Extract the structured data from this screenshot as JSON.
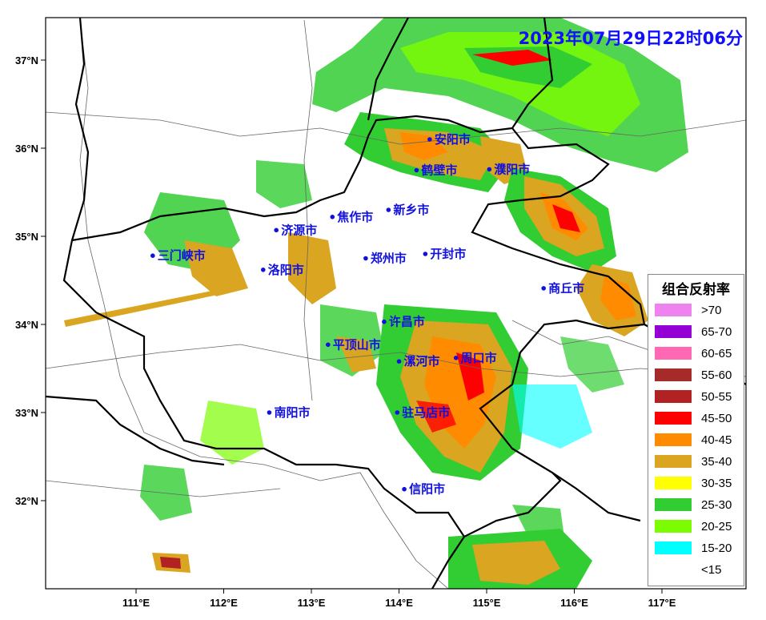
{
  "timestamp": "2023年07月29日22时06分",
  "axes": {
    "lon_labels": [
      "111°E",
      "112°E",
      "113°E",
      "114°E",
      "115°E",
      "116°E",
      "117°E"
    ],
    "lat_labels": [
      "37°N",
      "36°N",
      "35°N",
      "34°N",
      "33°N",
      "32°N"
    ]
  },
  "cities": [
    {
      "name": "安阳市",
      "lon": 114.35,
      "lat": 36.1
    },
    {
      "name": "鹤壁市",
      "lon": 114.2,
      "lat": 35.75
    },
    {
      "name": "濮阳市",
      "lon": 115.03,
      "lat": 35.76
    },
    {
      "name": "新乡市",
      "lon": 113.88,
      "lat": 35.3
    },
    {
      "name": "焦作市",
      "lon": 113.24,
      "lat": 35.22
    },
    {
      "name": "济源市",
      "lon": 112.6,
      "lat": 35.07
    },
    {
      "name": "三门峡市",
      "lon": 111.19,
      "lat": 34.78
    },
    {
      "name": "郑州市",
      "lon": 113.62,
      "lat": 34.75
    },
    {
      "name": "开封市",
      "lon": 114.3,
      "lat": 34.8
    },
    {
      "name": "洛阳市",
      "lon": 112.45,
      "lat": 34.62
    },
    {
      "name": "商丘市",
      "lon": 115.65,
      "lat": 34.41
    },
    {
      "name": "许昌市",
      "lon": 113.83,
      "lat": 34.03
    },
    {
      "name": "平顶山市",
      "lon": 113.19,
      "lat": 33.77
    },
    {
      "name": "漯河市",
      "lon": 114.0,
      "lat": 33.58
    },
    {
      "name": "周口市",
      "lon": 114.65,
      "lat": 33.62
    },
    {
      "name": "南阳市",
      "lon": 112.52,
      "lat": 33.0
    },
    {
      "name": "驻马店市",
      "lon": 113.98,
      "lat": 33.0
    },
    {
      "name": "信阳市",
      "lon": 114.06,
      "lat": 32.13
    }
  ],
  "legend": {
    "title": "组合反射率",
    "items": [
      {
        "label": ">70",
        "color": "#ee82ee"
      },
      {
        "label": "65-70",
        "color": "#9400d3"
      },
      {
        "label": "60-65",
        "color": "#ff69b4"
      },
      {
        "label": "55-60",
        "color": "#a52a2a"
      },
      {
        "label": "50-55",
        "color": "#b22222"
      },
      {
        "label": "45-50",
        "color": "#ff0000"
      },
      {
        "label": "40-45",
        "color": "#ff8c00"
      },
      {
        "label": "35-40",
        "color": "#daa520"
      },
      {
        "label": "30-35",
        "color": "#ffff00"
      },
      {
        "label": "25-30",
        "color": "#32cd32"
      },
      {
        "label": "20-25",
        "color": "#7cfc00"
      },
      {
        "label": "15-20",
        "color": "#00ffff"
      },
      {
        "label": "<15",
        "color": "#ffffff"
      }
    ]
  }
}
